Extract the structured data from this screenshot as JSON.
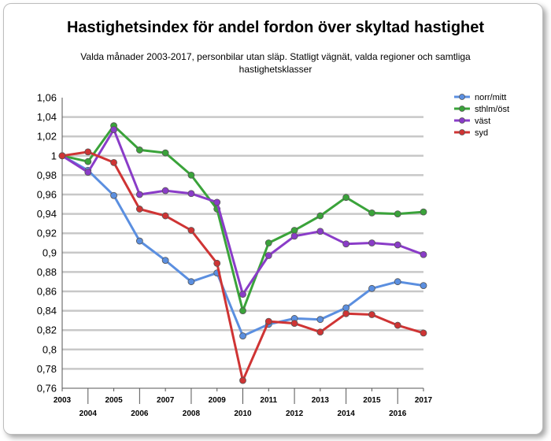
{
  "chart_data": {
    "type": "line",
    "title": "Hastighetsindex för andel fordon över skyltad hastighet",
    "subtitle": "Valda månader 2003-2017, personbilar utan släp. Statligt vägnät, valda regioner och samtliga hastighetsklasser",
    "xlabel": "",
    "ylabel": "",
    "x": [
      "2003",
      "2004",
      "2005",
      "2006",
      "2007",
      "2008",
      "2009",
      "2010",
      "2011",
      "2012",
      "2013",
      "2014",
      "2015",
      "2016",
      "2017"
    ],
    "ylim": [
      0.76,
      1.06
    ],
    "yticks": [
      "1,06",
      "1,04",
      "1,02",
      "1",
      "0,98",
      "0,96",
      "0,94",
      "0,92",
      "0,9",
      "0,88",
      "0,86",
      "0,84",
      "0,82",
      "0,8",
      "0,78",
      "0,76"
    ],
    "grid": true,
    "legend_position": "right",
    "series": [
      {
        "name": "norr/mitt",
        "color": "#5b8fe0",
        "values": [
          1.0,
          0.985,
          0.959,
          0.912,
          0.892,
          0.87,
          0.879,
          0.814,
          0.826,
          0.832,
          0.831,
          0.843,
          0.863,
          0.87,
          0.866
        ]
      },
      {
        "name": "sthlm/öst",
        "color": "#3aa33a",
        "values": [
          1.0,
          0.994,
          1.031,
          1.006,
          1.003,
          0.98,
          0.945,
          0.84,
          0.91,
          0.923,
          0.938,
          0.957,
          0.941,
          0.94,
          0.942
        ]
      },
      {
        "name": "väst",
        "color": "#8a3cc8",
        "values": [
          1.0,
          0.983,
          1.027,
          0.96,
          0.964,
          0.961,
          0.952,
          0.857,
          0.897,
          0.917,
          0.922,
          0.909,
          0.91,
          0.908,
          0.898
        ]
      },
      {
        "name": "syd",
        "color": "#cf3434",
        "values": [
          1.0,
          1.004,
          0.993,
          0.945,
          0.938,
          0.923,
          0.889,
          0.768,
          0.829,
          0.827,
          0.818,
          0.837,
          0.836,
          0.825,
          0.817
        ]
      }
    ]
  }
}
